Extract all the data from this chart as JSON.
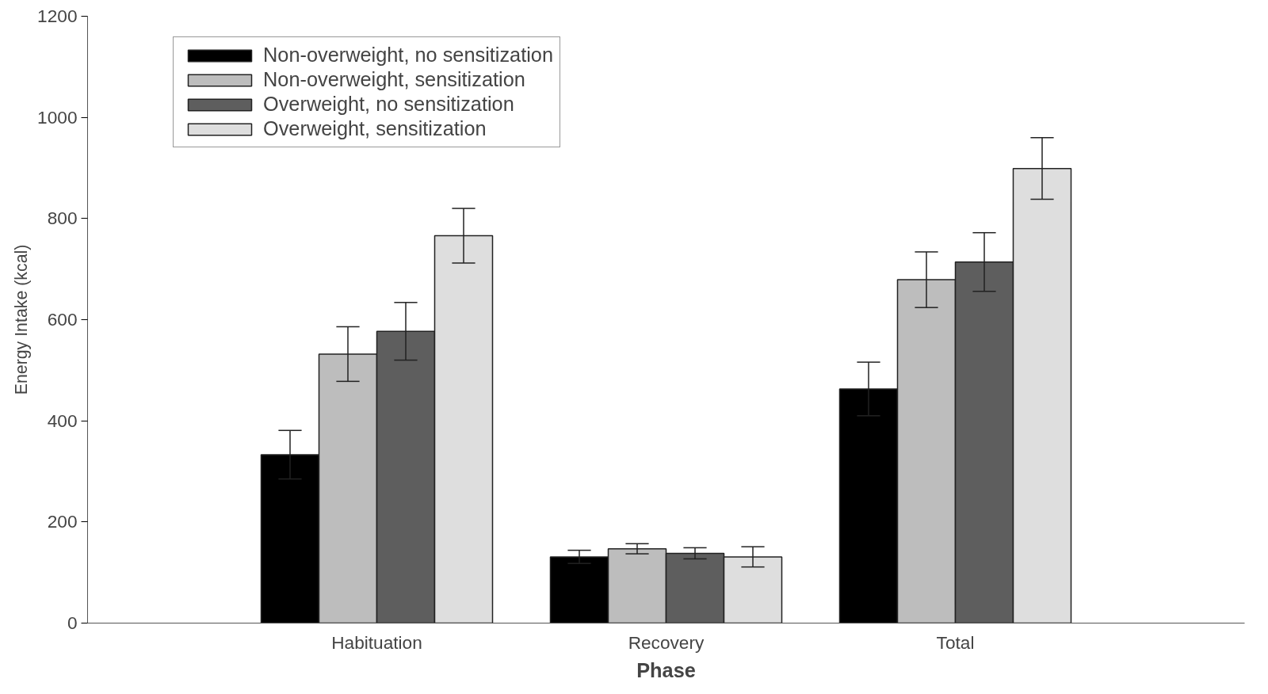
{
  "chart_data": {
    "type": "bar",
    "xlabel": "Phase",
    "ylabel": "Energy Intake (kcal)",
    "categories": [
      "Habituation",
      "Recovery",
      "Total"
    ],
    "series": [
      {
        "name": "Non-overweight, no sensitization",
        "color": "#000000",
        "values": [
          333,
          131,
          463
        ],
        "errors": [
          48,
          13,
          53
        ]
      },
      {
        "name": "Non-overweight, sensitization",
        "color": "#bdbdbd",
        "values": [
          532,
          147,
          679
        ],
        "errors": [
          54,
          10,
          55
        ]
      },
      {
        "name": "Overweight, no sensitization",
        "color": "#5e5e5e",
        "values": [
          577,
          138,
          714
        ],
        "errors": [
          57,
          11,
          58
        ]
      },
      {
        "name": "Overweight, sensitization",
        "color": "#dedede",
        "values": [
          766,
          131,
          899
        ],
        "errors": [
          54,
          20,
          61
        ]
      }
    ],
    "ylim": [
      0,
      1200
    ],
    "yticks": [
      0,
      200,
      400,
      600,
      800,
      1000,
      1200
    ],
    "grid": false,
    "legend": "top left"
  }
}
